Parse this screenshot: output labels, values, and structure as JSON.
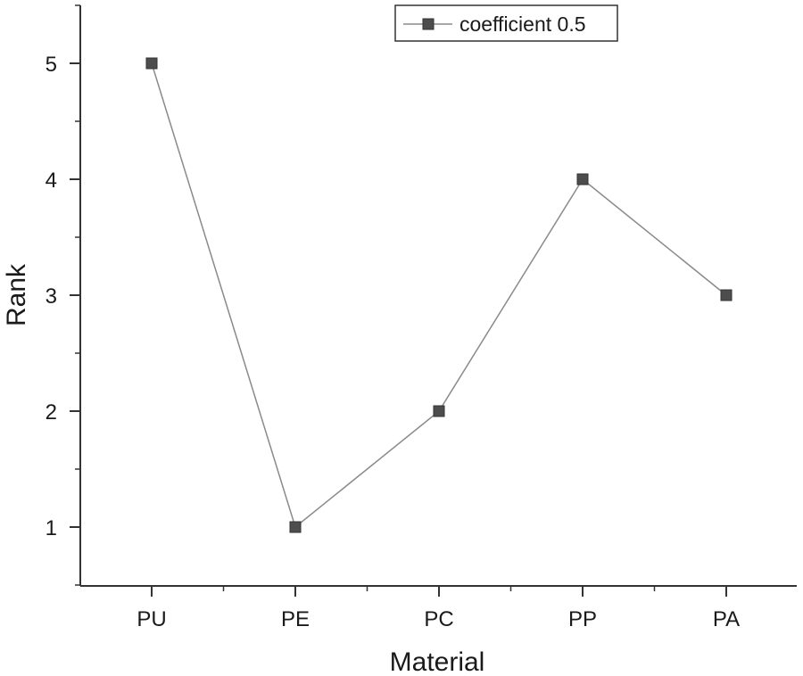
{
  "chart_data": {
    "type": "line",
    "title": "",
    "xlabel": "Material",
    "ylabel": "Rank",
    "categories": [
      "PU",
      "PE",
      "PC",
      "PP",
      "PA"
    ],
    "series": [
      {
        "name": "coefficient 0.5",
        "values": [
          5,
          1,
          2,
          4,
          3
        ],
        "marker": "square"
      }
    ],
    "yticks": [
      1,
      2,
      3,
      4,
      5
    ],
    "ylim": [
      0.5,
      5.5
    ],
    "grid": false,
    "legend_position": "top-right",
    "colors": {
      "line": "#8a8a8a",
      "marker": "#4d4d4d",
      "axis": "#333333"
    }
  }
}
